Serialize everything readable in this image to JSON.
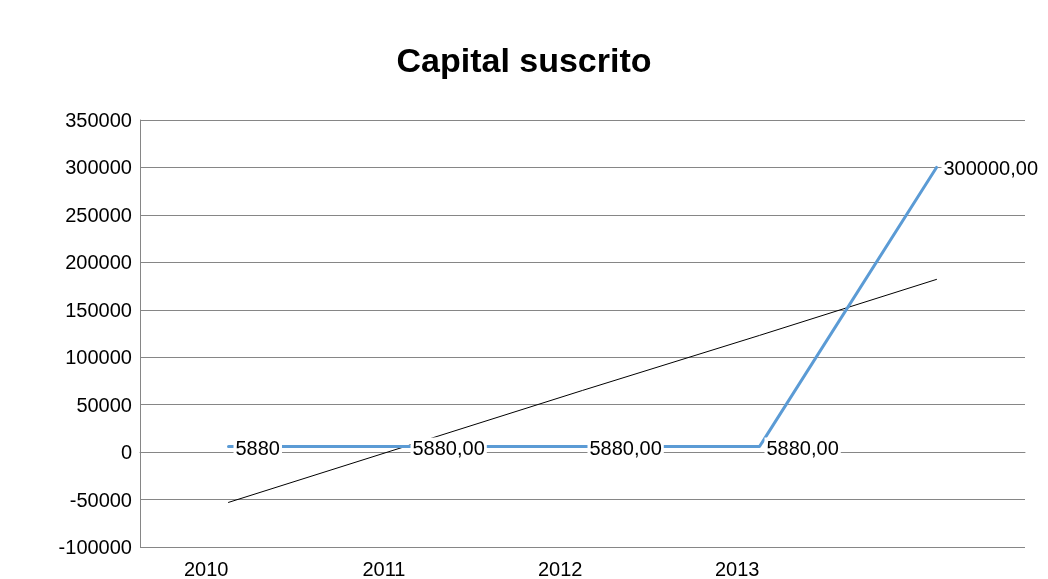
{
  "chart_data": {
    "type": "line",
    "title": "Capital suscrito",
    "categories": [
      "2010",
      "2011",
      "2012",
      "2013",
      null
    ],
    "series": [
      {
        "color": "#5b9bd5",
        "values": [
          5880,
          5880,
          5880,
          5880,
          300000
        ],
        "value_labels": [
          "5880",
          "5880,00",
          "5880,00",
          "5880,00",
          "300000,00"
        ]
      },
      {
        "color": "#000000",
        "values": [
          -53000,
          6000,
          65000,
          123000,
          182000
        ]
      }
    ],
    "ylim": [
      -100000,
      350000
    ],
    "yticks": [
      -100000,
      -50000,
      0,
      50000,
      100000,
      150000,
      200000,
      250000,
      300000,
      350000
    ],
    "grid": "y",
    "marker": "none",
    "line_style": "solid"
  }
}
